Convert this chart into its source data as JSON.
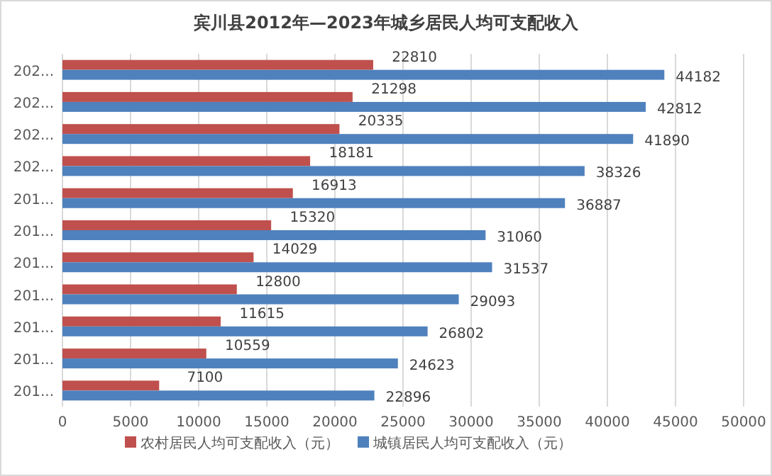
{
  "chart_data": {
    "type": "bar",
    "orientation": "horizontal",
    "title": "宾川县2012年—2023年城乡居民人均可支配收入",
    "categories": [
      "202...",
      "202...",
      "202...",
      "202...",
      "201...",
      "201...",
      "201...",
      "201...",
      "201...",
      "201...",
      "201..."
    ],
    "series": [
      {
        "name": "农村居民人均可支配收入（元）",
        "color": "#c0504d",
        "values": [
          22810,
          21298,
          20335,
          18181,
          16913,
          15320,
          14029,
          12800,
          11615,
          10559,
          7100
        ]
      },
      {
        "name": "城镇居民人均可支配收入（元）",
        "color": "#4f81bd",
        "values": [
          44182,
          42812,
          41890,
          38326,
          36887,
          31060,
          31537,
          29093,
          26802,
          24623,
          22896
        ]
      }
    ],
    "xlim": [
      0,
      50000
    ],
    "xticks": [
      0,
      5000,
      10000,
      15000,
      20000,
      25000,
      30000,
      35000,
      40000,
      45000,
      50000
    ],
    "grid": "x",
    "data_labels": true,
    "legend": "bottom"
  }
}
